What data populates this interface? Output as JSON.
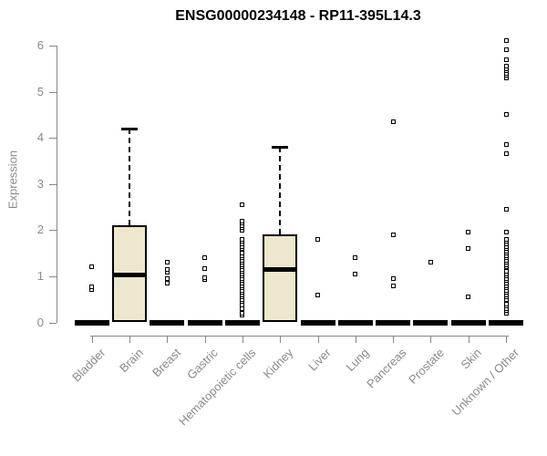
{
  "chart_data": {
    "type": "boxplot",
    "title": "ENSG00000234148 - RP11-395L14.3",
    "xlabel": "",
    "ylabel": "Expression",
    "ylim": [
      0,
      6.2
    ],
    "yticks": [
      0,
      1,
      2,
      3,
      4,
      5,
      6
    ],
    "grid": false,
    "legend": false,
    "box_fill_color": "#EDE7CE",
    "axis_color": "#878787",
    "label_color": "#8a8a8a",
    "categories": [
      "Bladder",
      "Brain",
      "Breast",
      "Gastric",
      "Hematopoietic cells",
      "Kidney",
      "Liver",
      "Lung",
      "Pancreas",
      "Prostate",
      "Skin",
      "Unknown / Other"
    ],
    "series": [
      {
        "category": "Bladder",
        "q1": 0,
        "median": 0,
        "q3": 0,
        "whisker_low": 0,
        "whisker_high": 0,
        "outliers": [
          0.72,
          0.78,
          1.2
        ]
      },
      {
        "category": "Brain",
        "q1": 0,
        "median": 1.02,
        "q3": 2.1,
        "whisker_low": 0,
        "whisker_high": 4.2,
        "outliers": []
      },
      {
        "category": "Breast",
        "q1": 0,
        "median": 0,
        "q3": 0,
        "whisker_low": 0,
        "whisker_high": 0,
        "outliers": [
          0.85,
          0.95,
          1.08,
          1.14,
          1.3
        ]
      },
      {
        "category": "Gastric",
        "q1": 0,
        "median": 0,
        "q3": 0,
        "whisker_low": 0,
        "whisker_high": 0,
        "outliers": [
          0.93,
          0.97,
          1.17,
          1.4
        ]
      },
      {
        "category": "Hematopoietic cells",
        "q1": 0,
        "median": 0,
        "q3": 0,
        "whisker_low": 0,
        "whisker_high": 0,
        "outliers": [
          0.15,
          0.2,
          0.3,
          0.37,
          0.45,
          0.5,
          0.55,
          0.6,
          0.65,
          0.7,
          0.75,
          0.8,
          0.85,
          0.9,
          0.95,
          1.0,
          1.05,
          1.1,
          1.15,
          1.2,
          1.25,
          1.3,
          1.35,
          1.4,
          1.45,
          1.5,
          1.6,
          1.65,
          1.7,
          1.75,
          1.8,
          2.0,
          2.05,
          2.1,
          2.15,
          2.2,
          2.55
        ]
      },
      {
        "category": "Kidney",
        "q1": 0,
        "median": 1.15,
        "q3": 1.9,
        "whisker_low": 0,
        "whisker_high": 3.8,
        "outliers": []
      },
      {
        "category": "Liver",
        "q1": 0,
        "median": 0,
        "q3": 0,
        "whisker_low": 0,
        "whisker_high": 0,
        "outliers": [
          0.6,
          1.8
        ]
      },
      {
        "category": "Lung",
        "q1": 0,
        "median": 0,
        "q3": 0,
        "whisker_low": 0,
        "whisker_high": 0,
        "outliers": [
          1.05,
          1.4
        ]
      },
      {
        "category": "Pancreas",
        "q1": 0,
        "median": 0,
        "q3": 0,
        "whisker_low": 0,
        "whisker_high": 0,
        "outliers": [
          0.8,
          0.95,
          1.9,
          4.35
        ]
      },
      {
        "category": "Prostate",
        "q1": 0,
        "median": 0,
        "q3": 0,
        "whisker_low": 0,
        "whisker_high": 0,
        "outliers": [
          1.3
        ]
      },
      {
        "category": "Skin",
        "q1": 0,
        "median": 0,
        "q3": 0,
        "whisker_low": 0,
        "whisker_high": 0,
        "outliers": [
          0.55,
          1.6,
          1.95
        ]
      },
      {
        "category": "Unknown / Other",
        "q1": 0,
        "median": 0,
        "q3": 0,
        "whisker_low": 0,
        "whisker_high": 0,
        "outliers": [
          0.2,
          0.25,
          0.3,
          0.35,
          0.4,
          0.5,
          0.55,
          0.6,
          0.65,
          0.7,
          0.75,
          0.8,
          0.85,
          0.9,
          0.95,
          1.0,
          1.05,
          1.1,
          1.2,
          1.25,
          1.3,
          1.35,
          1.4,
          1.45,
          1.5,
          1.55,
          1.6,
          1.65,
          1.7,
          1.75,
          1.8,
          1.95,
          2.45,
          3.65,
          3.85,
          4.5,
          5.3,
          5.35,
          5.4,
          5.45,
          5.5,
          5.55,
          5.7,
          5.9,
          6.1
        ]
      }
    ]
  }
}
